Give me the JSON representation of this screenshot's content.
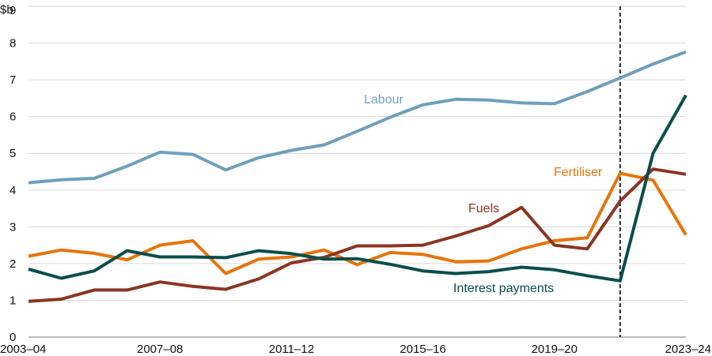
{
  "chart_data": {
    "type": "line",
    "ylabel": "$b",
    "ylim": [
      0,
      9
    ],
    "yticks": [
      "0",
      "1",
      "2",
      "3",
      "4",
      "5",
      "6",
      "7",
      "8",
      "9"
    ],
    "x_tick_labels": [
      "2003–04",
      "2007–08",
      "2011–12",
      "2015–16",
      "2019–20",
      "2023–24"
    ],
    "x_tick_positions": [
      0,
      4,
      8,
      12,
      16,
      20
    ],
    "x_count": 21,
    "projection_start_index": 18,
    "series": [
      {
        "name": "Labour",
        "color": "#6F9FBB",
        "label_color": "#6F9FBB",
        "values": [
          4.2,
          4.28,
          4.32,
          4.65,
          5.03,
          4.97,
          4.55,
          4.88,
          5.08,
          5.23,
          5.6,
          5.98,
          6.32,
          6.47,
          6.45,
          6.37,
          6.35,
          6.68,
          7.05,
          7.43,
          7.76
        ]
      },
      {
        "name": "Fertiliser",
        "color": "#E8740C",
        "label_color": "#E8740C",
        "values": [
          2.2,
          2.37,
          2.28,
          2.1,
          2.5,
          2.62,
          1.73,
          2.12,
          2.18,
          2.37,
          1.97,
          2.3,
          2.25,
          2.05,
          2.07,
          2.4,
          2.62,
          2.7,
          4.46,
          4.27,
          2.78
        ]
      },
      {
        "name": "Fuels",
        "color": "#8B3522",
        "label_color": "#8B3522",
        "values": [
          0.97,
          1.03,
          1.28,
          1.28,
          1.5,
          1.38,
          1.3,
          1.58,
          2.02,
          2.17,
          2.48,
          2.48,
          2.5,
          2.75,
          3.03,
          3.53,
          2.5,
          2.4,
          3.7,
          4.57,
          4.43
        ]
      },
      {
        "name": "Interest payments",
        "color": "#0A4E4C",
        "label_color": "#0A4E4C",
        "values": [
          1.85,
          1.6,
          1.8,
          2.35,
          2.18,
          2.18,
          2.16,
          2.35,
          2.27,
          2.12,
          2.13,
          1.98,
          1.8,
          1.73,
          1.78,
          1.9,
          1.83,
          1.67,
          1.53,
          5.0,
          6.58
        ]
      }
    ]
  }
}
